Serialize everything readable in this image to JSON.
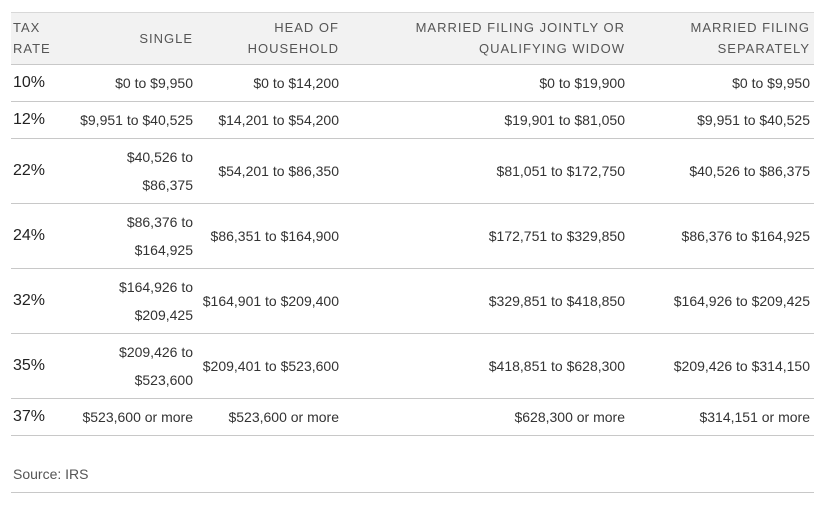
{
  "header": {
    "columns": [
      "TAX RATE",
      "SINGLE",
      "HEAD OF HOUSEHOLD",
      "MARRIED FILING JOINTLY OR QUALIFYING WIDOW",
      "MARRIED FILING SEPARATELY"
    ]
  },
  "table": {
    "rows": [
      [
        "10%",
        "$0 to $9,950",
        "$0 to $14,200",
        "$0 to $19,900",
        "$0 to $9,950"
      ],
      [
        "12%",
        "$9,951 to $40,525",
        "$14,201 to $54,200",
        "$19,901 to $81,050",
        "$9,951 to $40,525"
      ],
      [
        "22%",
        "$40,526 to $86,375",
        "$54,201 to $86,350",
        "$81,051 to $172,750",
        "$40,526 to $86,375"
      ],
      [
        "24%",
        "$86,376 to $164,925",
        "$86,351 to $164,900",
        "$172,751 to $329,850",
        "$86,376 to $164,925"
      ],
      [
        "32%",
        "$164,926 to $209,425",
        "$164,901 to $209,400",
        "$329,851 to $418,850",
        "$164,926 to $209,425"
      ],
      [
        "35%",
        "$209,426 to $523,600",
        "$209,401 to $523,600",
        "$418,851 to $628,300",
        "$209,426 to $314,150"
      ],
      [
        "37%",
        "$523,600 or more",
        "$523,600 or more",
        "$628,300 or more",
        "$314,151 or more"
      ]
    ]
  },
  "footer": {
    "source": "Source: IRS"
  }
}
